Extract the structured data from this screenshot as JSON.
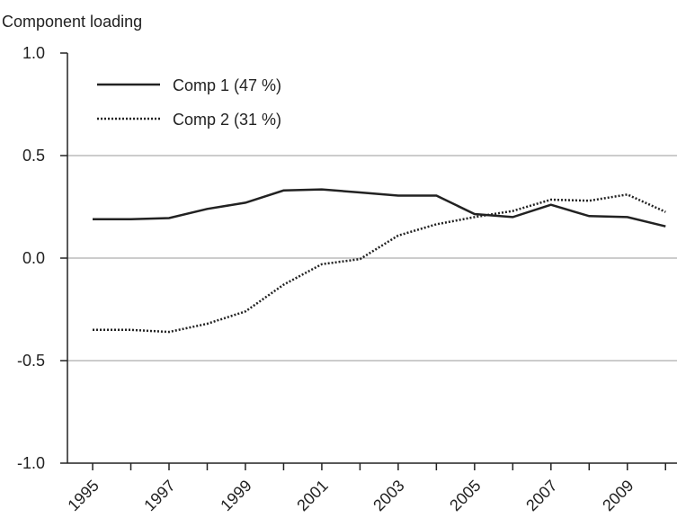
{
  "chart_data": {
    "type": "line",
    "title": "Component loading",
    "x": [
      1995,
      1996,
      1997,
      1998,
      1999,
      2000,
      2001,
      2002,
      2003,
      2004,
      2005,
      2006,
      2007,
      2008,
      2009,
      2010
    ],
    "series": [
      {
        "name": "Comp 1 (47 %)",
        "color": "#222222",
        "dash": "solid",
        "values": [
          0.19,
          0.19,
          0.195,
          0.24,
          0.27,
          0.33,
          0.335,
          0.32,
          0.305,
          0.305,
          0.215,
          0.2,
          0.26,
          0.205,
          0.2,
          0.155
        ]
      },
      {
        "name": "Comp 2 (31 %)",
        "color": "#222222",
        "dash": "dotted",
        "values": [
          -0.35,
          -0.35,
          -0.36,
          -0.32,
          -0.26,
          -0.13,
          -0.03,
          -0.005,
          0.11,
          0.165,
          0.2,
          0.23,
          0.285,
          0.28,
          0.31,
          0.225
        ]
      }
    ],
    "xlim": [
      1994.34,
      2010.3
    ],
    "xticks": [
      1995,
      1997,
      1999,
      2001,
      2003,
      2005,
      2007,
      2009
    ],
    "xminor_ticks": [
      1996,
      1998,
      2000,
      2002,
      2004,
      2006,
      2008,
      2010
    ],
    "ylim": [
      -1,
      1
    ],
    "yticks": [
      {
        "value": -1,
        "label": "-1.0"
      },
      {
        "value": -0.5,
        "label": "-0.5"
      },
      {
        "value": 0,
        "label": "0.0"
      },
      {
        "value": 0.5,
        "label": "0.5"
      },
      {
        "value": 1,
        "label": "1.0"
      }
    ],
    "grid": true,
    "legend": "upper left"
  }
}
